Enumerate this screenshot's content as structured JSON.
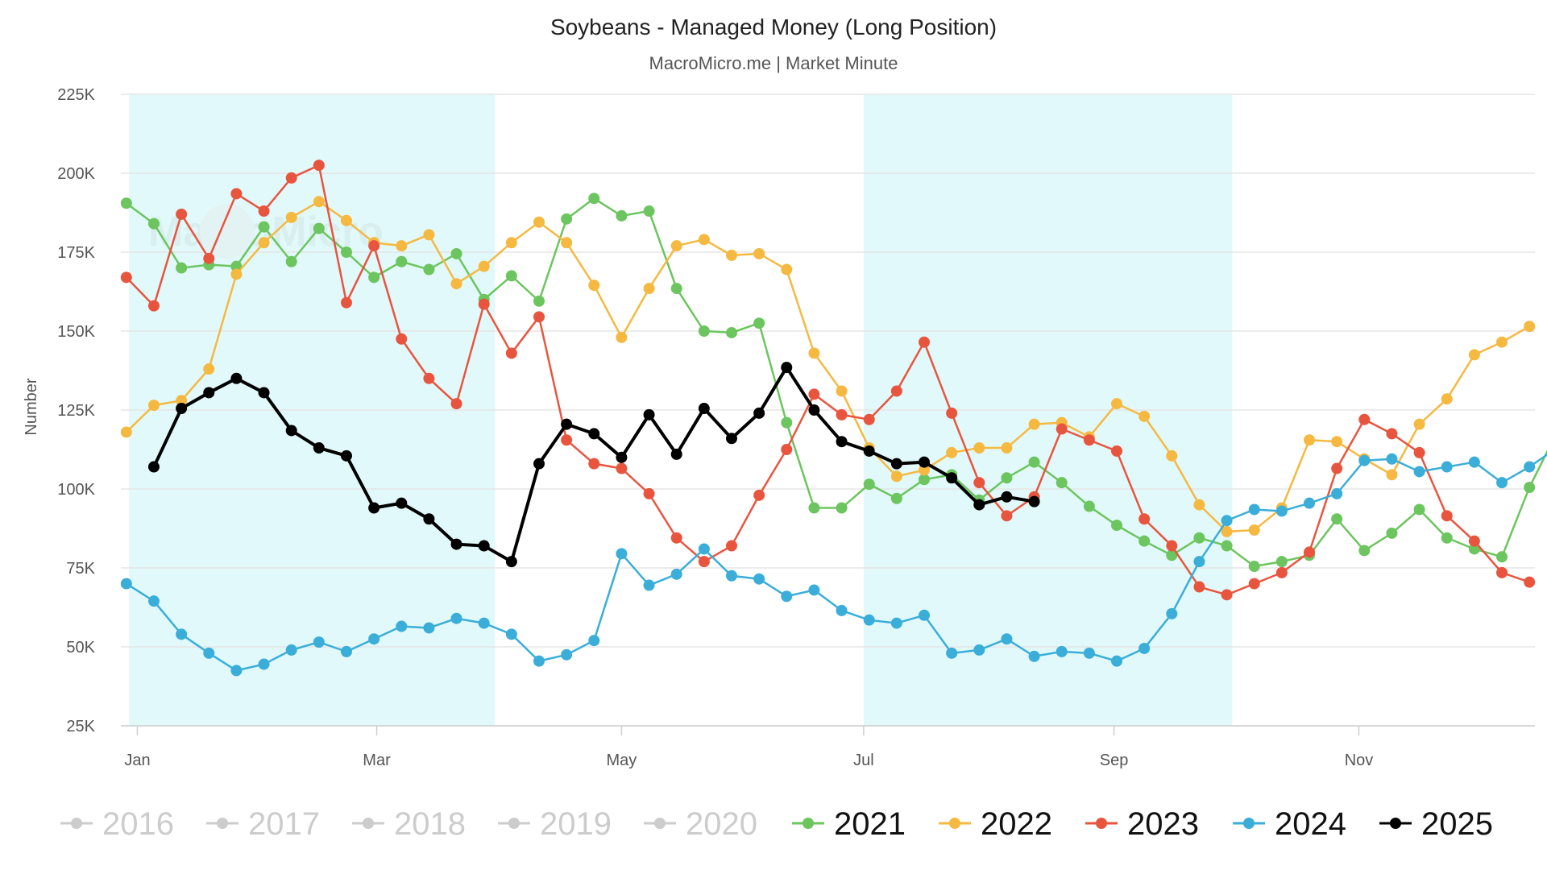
{
  "chart_data": {
    "type": "line",
    "title": "Soybeans - Managed Money (Long Position)",
    "subtitle": "MacroMicro.me | Market Minute",
    "watermark": "MacroMicro",
    "ylabel": "Number",
    "ylim": [
      25000,
      225000
    ],
    "yticks": [
      25000,
      50000,
      75000,
      100000,
      125000,
      150000,
      175000,
      200000,
      225000
    ],
    "ytick_labels": [
      "25K",
      "50K",
      "75K",
      "100K",
      "125K",
      "150K",
      "175K",
      "200K",
      "225K"
    ],
    "xlim": [
      -0.2,
      51.2
    ],
    "xticks": [
      0.4,
      9.1,
      18.0,
      26.8,
      35.9,
      44.8
    ],
    "xtick_labels": [
      "Jan",
      "Mar",
      "May",
      "Jul",
      "Sep",
      "Nov"
    ],
    "shaded_bands": [
      [
        0.1,
        13.4
      ],
      [
        26.8,
        40.2
      ]
    ],
    "grid": true,
    "legend_position": "bottom",
    "series": [
      {
        "name": "2016",
        "color": "#cccccc",
        "visible": false,
        "values": []
      },
      {
        "name": "2017",
        "color": "#cccccc",
        "visible": false,
        "values": []
      },
      {
        "name": "2018",
        "color": "#cccccc",
        "visible": false,
        "values": []
      },
      {
        "name": "2019",
        "color": "#cccccc",
        "visible": false,
        "values": []
      },
      {
        "name": "2020",
        "color": "#cccccc",
        "visible": false,
        "values": []
      },
      {
        "name": "2021",
        "color": "#6cc55e",
        "visible": true,
        "values": [
          190500,
          184000,
          170000,
          171000,
          170500,
          183000,
          172000,
          182500,
          175000,
          167000,
          172000,
          169500,
          174500,
          160000,
          167500,
          159500,
          185500,
          192000,
          186500,
          188000,
          163500,
          150000,
          149500,
          152500,
          121000,
          94000,
          94000,
          101500,
          97000,
          103000,
          104500,
          96500,
          103500,
          108500,
          102000,
          94500,
          88500,
          83500,
          79000,
          84500,
          82000,
          75500,
          77000,
          79000,
          90500,
          80500,
          86000,
          93500,
          84500,
          81000,
          78500,
          100500,
          118000
        ]
      },
      {
        "name": "2022",
        "color": "#f5b942",
        "visible": true,
        "values": [
          118000,
          126500,
          128000,
          138000,
          168000,
          178000,
          186000,
          191000,
          185000,
          178000,
          177000,
          180500,
          165000,
          170500,
          178000,
          184500,
          178000,
          164500,
          148000,
          163500,
          177000,
          179000,
          174000,
          174500,
          169500,
          143000,
          131000,
          113000,
          104000,
          106000,
          111500,
          113000,
          113000,
          120500,
          121000,
          116500,
          127000,
          123000,
          110500,
          95000,
          86500,
          87000,
          94000,
          115500,
          115000,
          109500,
          104500,
          120500,
          128500,
          142500,
          146500,
          151500
        ]
      },
      {
        "name": "2023",
        "color": "#e8553f",
        "visible": true,
        "values": [
          167000,
          158000,
          187000,
          173000,
          193500,
          188000,
          198500,
          202500,
          159000,
          177000,
          147500,
          135000,
          127000,
          158500,
          143000,
          154500,
          115500,
          108000,
          106500,
          98500,
          84500,
          77000,
          82000,
          98000,
          112500,
          130000,
          123500,
          122000,
          131000,
          146500,
          124000,
          102000,
          91500,
          97500,
          119000,
          115500,
          112000,
          90500,
          82000,
          69000,
          66500,
          70000,
          73500,
          80000,
          106500,
          122000,
          117500,
          111500,
          91500,
          83500,
          73500,
          70500
        ]
      },
      {
        "name": "2024",
        "color": "#3aaed8",
        "visible": true,
        "values": [
          70000,
          64500,
          54000,
          48000,
          42500,
          44500,
          49000,
          51500,
          48500,
          52500,
          56500,
          56000,
          59000,
          57500,
          54000,
          45500,
          47500,
          52000,
          79500,
          69500,
          73000,
          81000,
          72500,
          71500,
          66000,
          68000,
          61500,
          58500,
          57500,
          60000,
          48000,
          49000,
          52500,
          47000,
          48500,
          48000,
          45500,
          49500,
          60500,
          77000,
          90000,
          93500,
          93000,
          95500,
          98500,
          109000,
          109500,
          105500,
          107000,
          108500,
          102000,
          107000,
          113000
        ]
      },
      {
        "name": "2025",
        "color": "#000000",
        "visible": true,
        "values": [
          null,
          107000,
          125500,
          130500,
          135000,
          130500,
          118500,
          113000,
          110500,
          94000,
          95500,
          90500,
          82500,
          82000,
          77000,
          108000,
          120500,
          117500,
          110000,
          123500,
          111000,
          125500,
          116000,
          124000,
          138500,
          125000,
          115000,
          112000,
          108000,
          108500,
          103500,
          95000,
          97500,
          96000
        ]
      }
    ]
  }
}
